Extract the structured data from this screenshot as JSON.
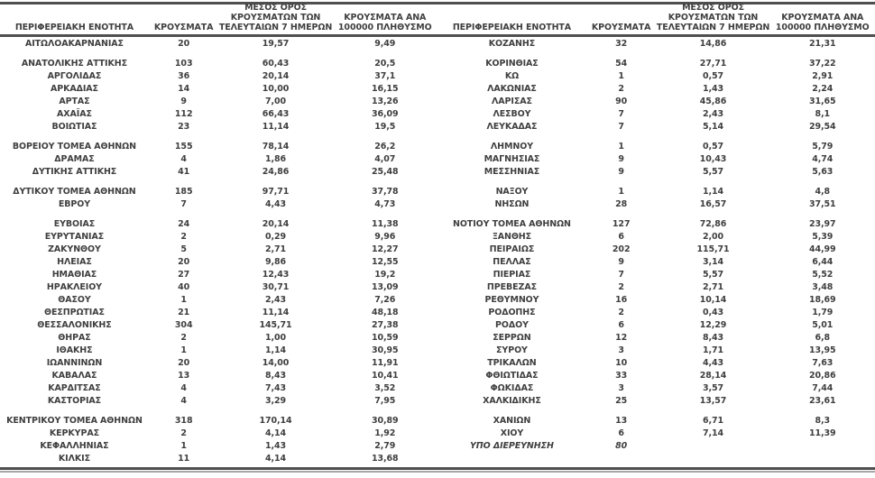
{
  "header": {
    "col_region": "ΠΕΡΙΦΕΡΕΙΑΚΗ ΕΝΟΤΗΤΑ",
    "col_cases": "ΚΡΟΥΣΜΑΤΑ",
    "col_avg7": "ΜΕΣΟΣ ΟΡΟΣ\nΚΡΟΥΣΜΑΤΩΝ ΤΩΝ\nΤΕΛΕΥΤΑΙΩΝ 7 ΗΜΕΡΩΝ",
    "col_per100k": "ΚΡΟΥΣΜΑΤΑ ΑΝΑ\n100000 ΠΛΗΘΥΣΜΟ"
  },
  "italic_label": "ΥΠΟ ΔΙΕΡΕΥΝΗΣΗ",
  "colors": {
    "text": "#3f3f3f",
    "rule_dark": "#4f4f4f",
    "rule_light": "#a8a8a8",
    "background": "#ffffff"
  },
  "tables": {
    "left": {
      "groups": [
        [
          [
            "ΑΙΤΩΛΟΑΚΑΡΝΑΝΙΑΣ",
            "20",
            "19,57",
            "9,49"
          ]
        ],
        [
          [
            "ΑΝΑΤΟΛΙΚΗΣ ΑΤΤΙΚΗΣ",
            "103",
            "60,43",
            "20,5"
          ],
          [
            "ΑΡΓΟΛΙΔΑΣ",
            "36",
            "20,14",
            "37,1"
          ],
          [
            "ΑΡΚΑΔΙΑΣ",
            "14",
            "10,00",
            "16,15"
          ],
          [
            "ΑΡΤΑΣ",
            "9",
            "7,00",
            "13,26"
          ],
          [
            "ΑΧΑΪΑΣ",
            "112",
            "66,43",
            "36,09"
          ],
          [
            "ΒΟΙΩΤΙΑΣ",
            "23",
            "11,14",
            "19,5"
          ]
        ],
        [
          [
            "ΒΟΡΕΙΟΥ ΤΟΜΕΑ ΑΘΗΝΩΝ",
            "155",
            "78,14",
            "26,2"
          ],
          [
            "ΔΡΑΜΑΣ",
            "4",
            "1,86",
            "4,07"
          ],
          [
            "ΔΥΤΙΚΗΣ ΑΤΤΙΚΗΣ",
            "41",
            "24,86",
            "25,48"
          ]
        ],
        [
          [
            "ΔΥΤΙΚΟΥ ΤΟΜΕΑ ΑΘΗΝΩΝ",
            "185",
            "97,71",
            "37,78"
          ],
          [
            "ΕΒΡΟΥ",
            "7",
            "4,43",
            "4,73"
          ]
        ],
        [
          [
            "ΕΥΒΟΙΑΣ",
            "24",
            "20,14",
            "11,38"
          ],
          [
            "ΕΥΡΥΤΑΝΙΑΣ",
            "2",
            "0,29",
            "9,96"
          ],
          [
            "ΖΑΚΥΝΘΟΥ",
            "5",
            "2,71",
            "12,27"
          ],
          [
            "ΗΛΕΙΑΣ",
            "20",
            "9,86",
            "12,55"
          ],
          [
            "ΗΜΑΘΙΑΣ",
            "27",
            "12,43",
            "19,2"
          ],
          [
            "ΗΡΑΚΛΕΙΟΥ",
            "40",
            "30,71",
            "13,09"
          ],
          [
            "ΘΑΣΟΥ",
            "1",
            "2,43",
            "7,26"
          ],
          [
            "ΘΕΣΠΡΩΤΙΑΣ",
            "21",
            "11,14",
            "48,18"
          ],
          [
            "ΘΕΣΣΑΛΟΝΙΚΗΣ",
            "304",
            "145,71",
            "27,38"
          ],
          [
            "ΘΗΡΑΣ",
            "2",
            "1,00",
            "10,59"
          ],
          [
            "ΙΘΑΚΗΣ",
            "1",
            "1,14",
            "30,95"
          ],
          [
            "ΙΩΑΝΝΙΝΩΝ",
            "20",
            "14,00",
            "11,91"
          ],
          [
            "ΚΑΒΑΛΑΣ",
            "13",
            "8,43",
            "10,41"
          ],
          [
            "ΚΑΡΔΙΤΣΑΣ",
            "4",
            "7,43",
            "3,52"
          ],
          [
            "ΚΑΣΤΟΡΙΑΣ",
            "4",
            "3,29",
            "7,95"
          ]
        ],
        [
          [
            "ΚΕΝΤΡΙΚΟΥ ΤΟΜΕΑ ΑΘΗΝΩΝ",
            "318",
            "170,14",
            "30,89"
          ],
          [
            "ΚΕΡΚΥΡΑΣ",
            "2",
            "4,14",
            "1,92"
          ],
          [
            "ΚΕΦΑΛΛΗΝΙΑΣ",
            "1",
            "1,43",
            "2,79"
          ],
          [
            "ΚΙΛΚΙΣ",
            "11",
            "4,14",
            "13,68"
          ]
        ]
      ]
    },
    "right": {
      "groups": [
        [
          [
            "ΚΟΖΑΝΗΣ",
            "32",
            "14,86",
            "21,31"
          ]
        ],
        [
          [
            "ΚΟΡΙΝΘΙΑΣ",
            "54",
            "27,71",
            "37,22"
          ],
          [
            "ΚΩ",
            "1",
            "0,57",
            "2,91"
          ],
          [
            "ΛΑΚΩΝΙΑΣ",
            "2",
            "1,43",
            "2,24"
          ],
          [
            "ΛΑΡΙΣΑΣ",
            "90",
            "45,86",
            "31,65"
          ],
          [
            "ΛΕΣΒΟΥ",
            "7",
            "2,43",
            "8,1"
          ],
          [
            "ΛΕΥΚΑΔΑΣ",
            "7",
            "5,14",
            "29,54"
          ]
        ],
        [
          [
            "ΛΗΜΝΟΥ",
            "1",
            "0,57",
            "5,79"
          ],
          [
            "ΜΑΓΝΗΣΙΑΣ",
            "9",
            "10,43",
            "4,74"
          ],
          [
            "ΜΕΣΣΗΝΙΑΣ",
            "9",
            "5,57",
            "5,63"
          ]
        ],
        [
          [
            "ΝΑΞΟΥ",
            "1",
            "1,14",
            "4,8"
          ],
          [
            "ΝΗΣΩΝ",
            "28",
            "16,57",
            "37,51"
          ]
        ],
        [
          [
            "ΝΟΤΙΟΥ ΤΟΜΕΑ ΑΘΗΝΩΝ",
            "127",
            "72,86",
            "23,97"
          ],
          [
            "ΞΑΝΘΗΣ",
            "6",
            "2,00",
            "5,39"
          ],
          [
            "ΠΕΙΡΑΙΩΣ",
            "202",
            "115,71",
            "44,99"
          ],
          [
            "ΠΕΛΛΑΣ",
            "9",
            "3,14",
            "6,44"
          ],
          [
            "ΠΙΕΡΙΑΣ",
            "7",
            "5,57",
            "5,52"
          ],
          [
            "ΠΡΕΒΕΖΑΣ",
            "2",
            "2,71",
            "3,48"
          ],
          [
            "ΡΕΘΥΜΝΟΥ",
            "16",
            "10,14",
            "18,69"
          ],
          [
            "ΡΟΔΟΠΗΣ",
            "2",
            "0,43",
            "1,79"
          ],
          [
            "ΡΟΔΟΥ",
            "6",
            "12,29",
            "5,01"
          ],
          [
            "ΣΕΡΡΩΝ",
            "12",
            "8,43",
            "6,8"
          ],
          [
            "ΣΥΡΟΥ",
            "3",
            "1,71",
            "13,95"
          ],
          [
            "ΤΡΙΚΑΛΩΝ",
            "10",
            "4,43",
            "7,63"
          ],
          [
            "ΦΘΙΩΤΙΔΑΣ",
            "33",
            "28,14",
            "20,86"
          ],
          [
            "ΦΩΚΙΔΑΣ",
            "3",
            "3,57",
            "7,44"
          ],
          [
            "ΧΑΛΚΙΔΙΚΗΣ",
            "25",
            "13,57",
            "23,61"
          ]
        ],
        [
          [
            "ΧΑΝΙΩΝ",
            "13",
            "6,71",
            "8,3"
          ],
          [
            "ΧΙΟΥ",
            "6",
            "7,14",
            "11,39"
          ],
          [
            "ΥΠΟ ΔΙΕΡΕΥΝΗΣΗ",
            "80",
            "",
            ""
          ]
        ]
      ]
    }
  }
}
